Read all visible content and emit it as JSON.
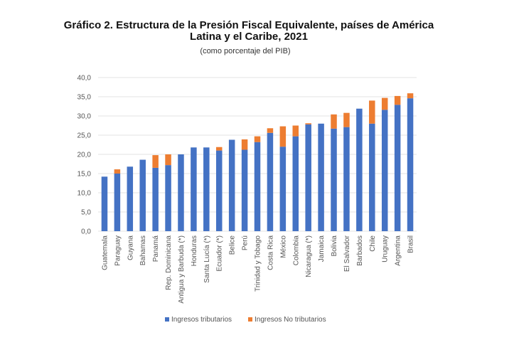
{
  "chart_data": {
    "type": "bar",
    "stacked": true,
    "title": "Gráfico 2.  Estructura de la Presión Fiscal Equivalente, países de América",
    "title_line2": "Latina y el Caribe, 2021",
    "subtitle": "(como porcentaje del PIB)",
    "xlabel": "",
    "ylabel": "",
    "ylim": [
      0,
      40
    ],
    "yticks": [
      "0,0",
      "5,0",
      "10,0",
      "15,0",
      "20,0",
      "25,0",
      "30,0",
      "35,0",
      "40,0"
    ],
    "grid": true,
    "legend_position": "bottom",
    "categories": [
      "Guatemala",
      "Paraguay",
      "Guyana",
      "Bahamas",
      "Panamá",
      "Rep. Dominicana",
      "Antigua y Barbuda (*)",
      "Honduras",
      "Santa Lucía (*)",
      "Ecuador (*)",
      "Belice",
      "Perú",
      "Trinidad y Tobago",
      "Costa Rica",
      "México",
      "Colombia",
      "Nicaragua (*)",
      "Jamaica",
      "Bolivia",
      "El Salvador",
      "Barbados",
      "Chile",
      "Uruguay",
      "Argentina",
      "Brasil"
    ],
    "series": [
      {
        "name": "Ingresos tributarios",
        "color": "#4472c4",
        "values": [
          14.2,
          15.0,
          16.8,
          18.6,
          16.5,
          17.2,
          20.0,
          21.8,
          21.8,
          21.0,
          23.8,
          21.2,
          23.2,
          25.6,
          22.0,
          24.7,
          27.8,
          28.0,
          26.7,
          27.1,
          31.9,
          28.0,
          31.6,
          32.9,
          34.6
        ]
      },
      {
        "name": "Ingresos No tributarios",
        "color": "#ed7d31",
        "values": [
          0,
          1.1,
          0,
          0,
          3.3,
          2.8,
          0,
          0,
          0,
          0.9,
          0,
          2.7,
          1.5,
          1.2,
          5.3,
          2.8,
          0.3,
          0,
          3.7,
          3.7,
          0,
          6.0,
          3.1,
          2.3,
          1.3
        ]
      }
    ]
  }
}
